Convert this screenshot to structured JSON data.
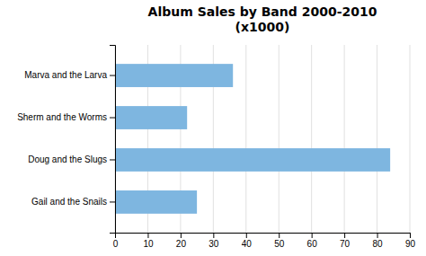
{
  "chart_data": {
    "type": "bar",
    "orientation": "horizontal",
    "title": "Album Sales by Band 2000-2010\n(x1000)",
    "categories": [
      "Gail and the Snails",
      "Doug and the Slugs",
      "Sherm and the Worms",
      "Marva and the Larva"
    ],
    "values": [
      25,
      84,
      22,
      36
    ],
    "color": "#7eb6e0",
    "xlim": [
      0,
      90
    ],
    "xticks": [
      0,
      10,
      20,
      30,
      40,
      50,
      60,
      70,
      80,
      90
    ],
    "grid": true
  }
}
